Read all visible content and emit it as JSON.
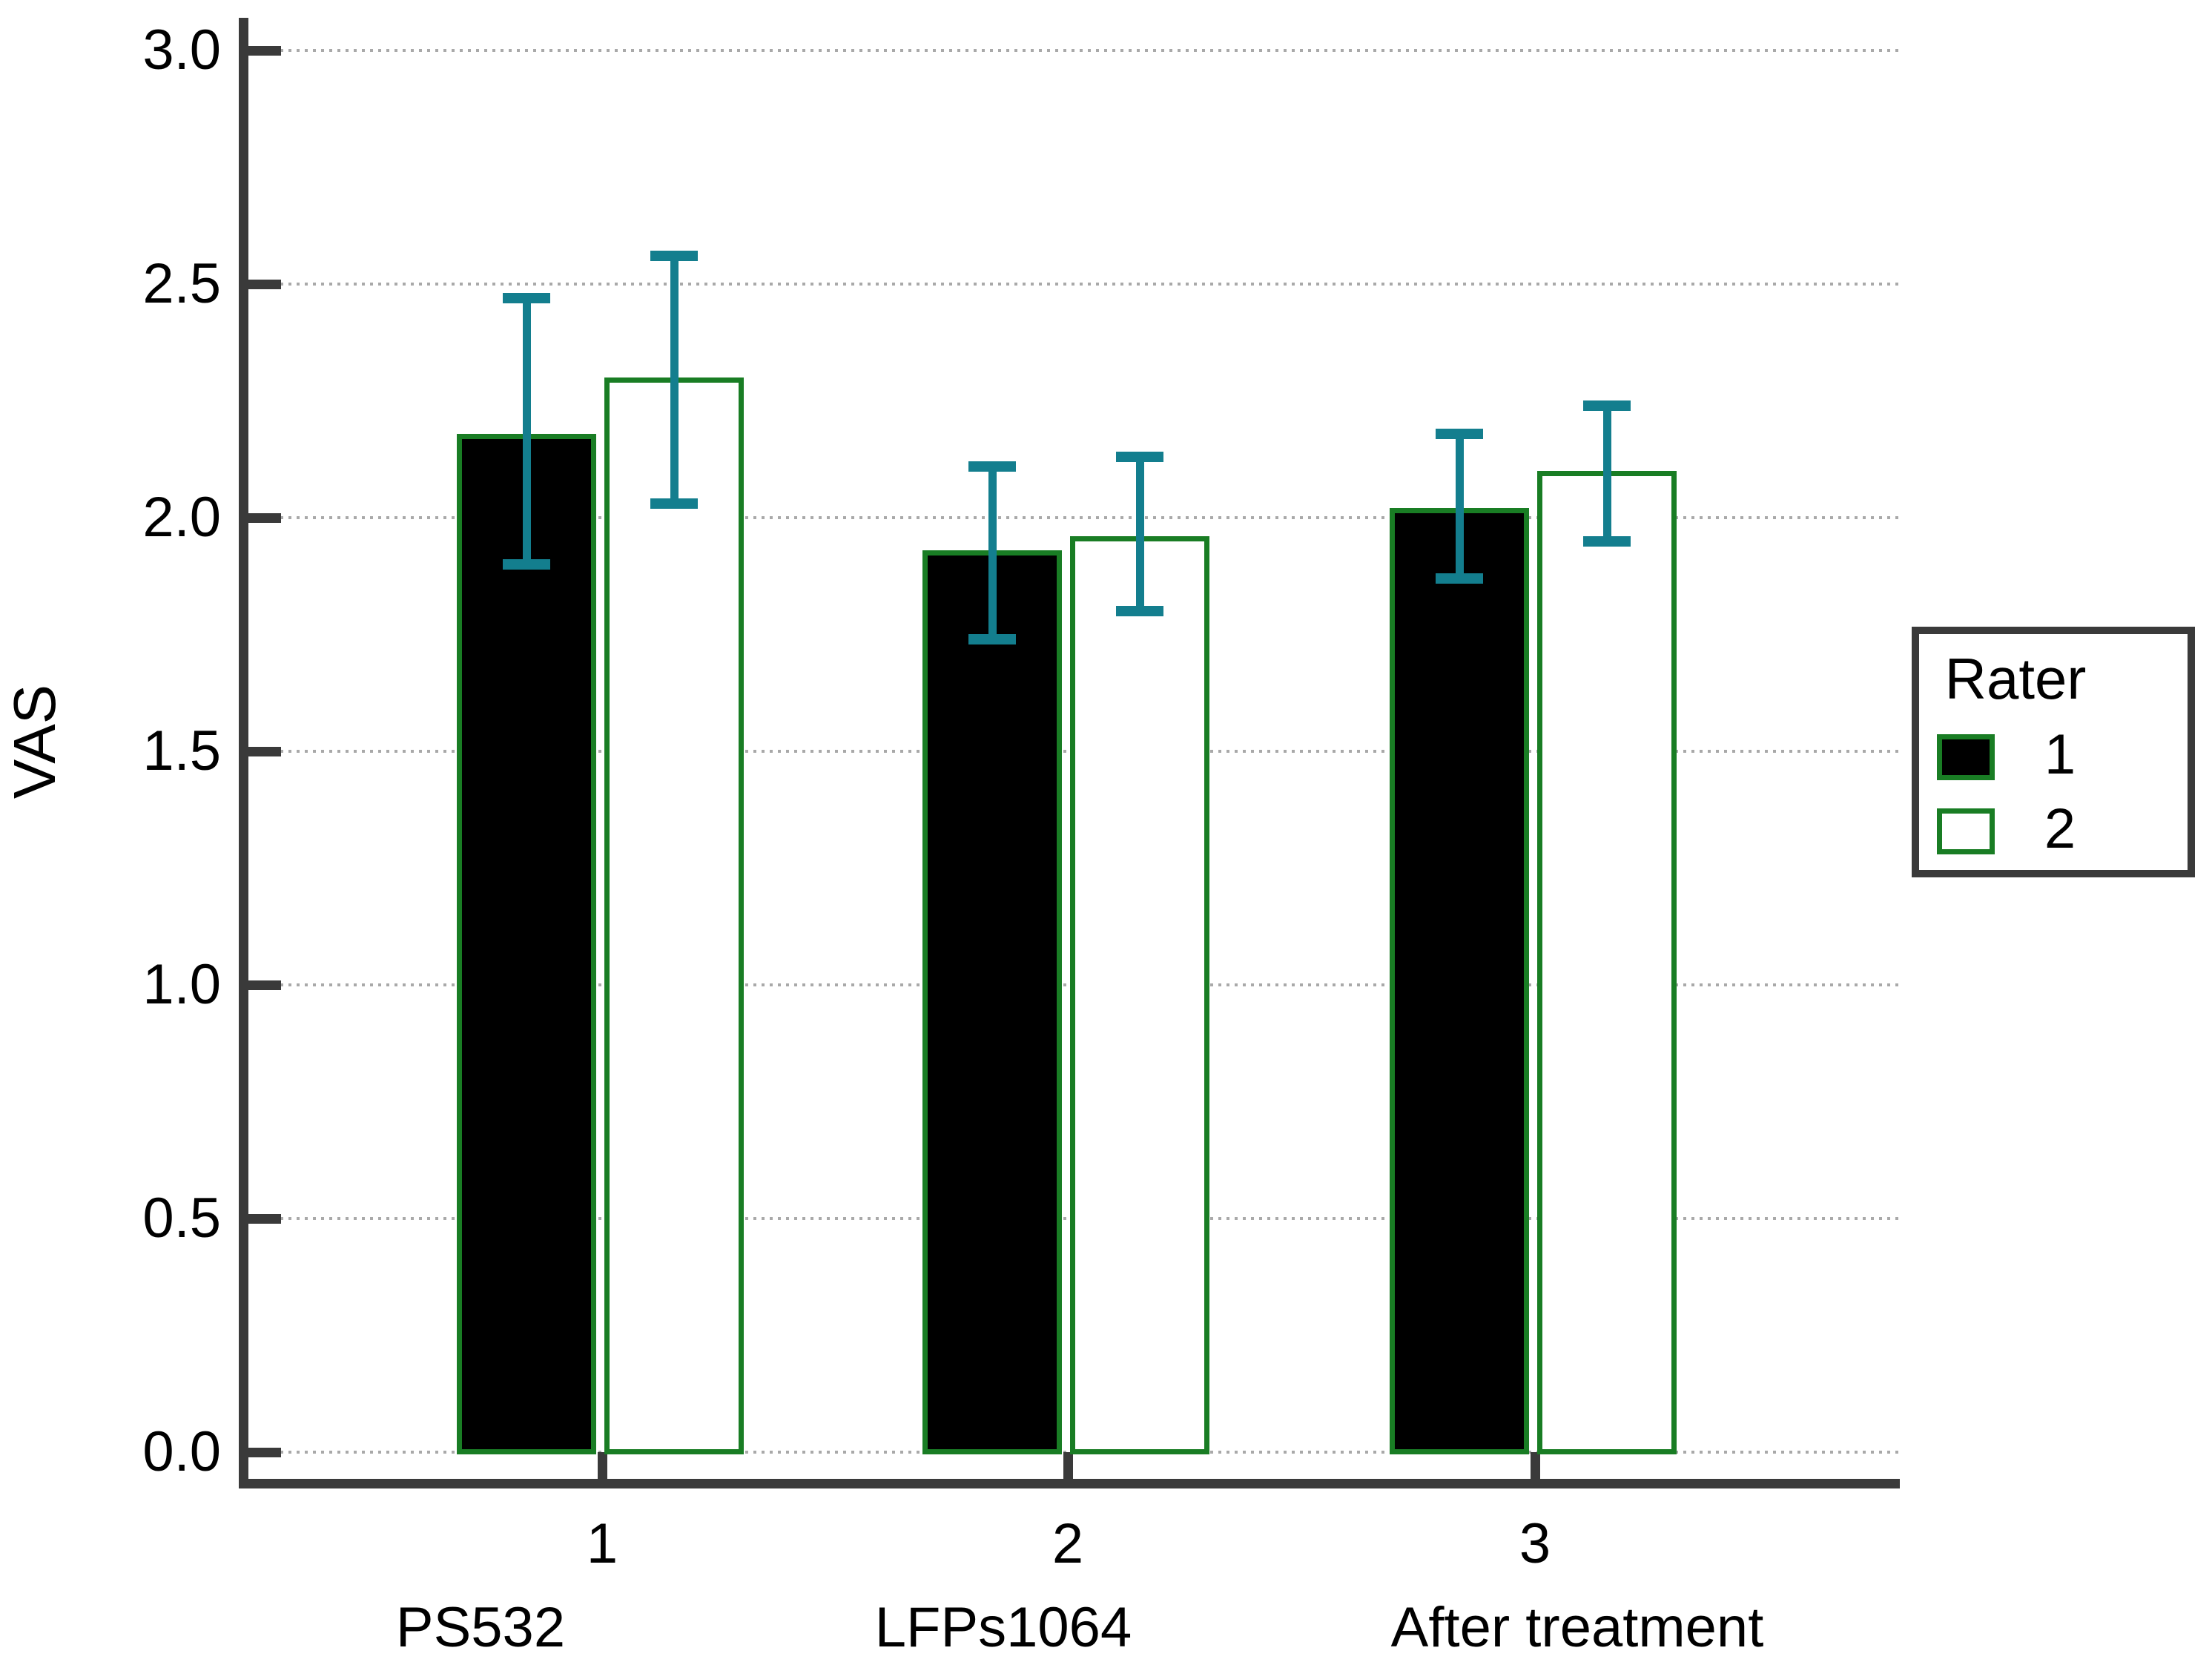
{
  "chart_data": {
    "type": "bar",
    "title": "",
    "xlabel": "",
    "ylabel": "VAS",
    "ylim": [
      0.0,
      3.0
    ],
    "grid": "dotted-horizontal",
    "yticks": [
      0.0,
      0.5,
      1.0,
      1.5,
      2.0,
      2.5,
      3.0
    ],
    "ytick_labels": [
      "0.0",
      "0.5",
      "1.0",
      "1.5",
      "2.0",
      "2.5",
      "3.0"
    ],
    "categories": [
      "1",
      "2",
      "3"
    ],
    "category_sublabels": [
      "PS532",
      "LFPs1064",
      "After treatment"
    ],
    "legend": {
      "title": "Rater",
      "position": "right",
      "entries": [
        {
          "label": "1",
          "fill": "#000000"
        },
        {
          "label": "2",
          "fill": "#ffffff"
        }
      ]
    },
    "series": [
      {
        "name": "1",
        "fill": "#000000",
        "values": [
          2.18,
          1.93,
          2.02
        ],
        "error_low": [
          1.9,
          1.74,
          1.87
        ],
        "error_high": [
          2.47,
          2.11,
          2.18
        ]
      },
      {
        "name": "2",
        "fill": "#ffffff",
        "values": [
          2.3,
          1.96,
          2.1
        ],
        "error_low": [
          2.03,
          1.8,
          1.95
        ],
        "error_high": [
          2.56,
          2.13,
          2.24
        ]
      }
    ],
    "colors": {
      "bar_border": "#197d24",
      "error_bar": "#137e8e",
      "axis": "#3a3a3a",
      "gridline": "#a9a9a9",
      "text": "#000000"
    }
  }
}
